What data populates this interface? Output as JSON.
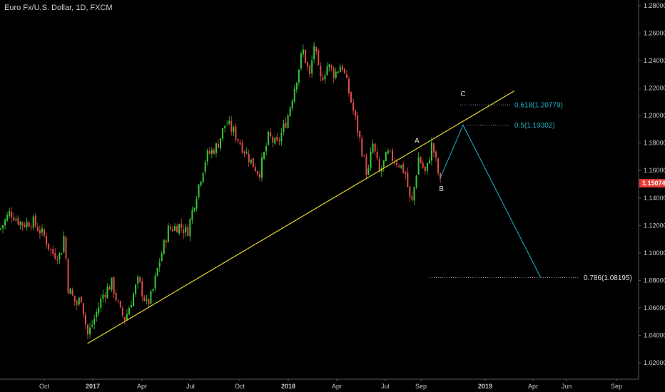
{
  "chart_data": {
    "type": "candlestick",
    "title": "Euro Fx/U.S. Dollar, 1D, FXCM",
    "ylim": [
      1.01,
      1.28
    ],
    "yticks": [
      "1.28000",
      "1.26000",
      "1.24000",
      "1.22000",
      "1.20000",
      "1.18000",
      "1.16000",
      "1.14000",
      "1.12000",
      "1.10000",
      "1.08000",
      "1.06000",
      "1.04000",
      "1.02000"
    ],
    "xticks": [
      "Oct",
      "2017",
      "Apr",
      "Jul",
      "Oct",
      "2018",
      "Apr",
      "Jul",
      "Sep",
      "2019",
      "Apr",
      "Jun",
      "Sep"
    ],
    "last_price": "1.15074",
    "price_path": [
      {
        "t": "2016-08",
        "v": 1.117
      },
      {
        "t": "2016-08-15",
        "v": 1.13
      },
      {
        "t": "2016-08-25",
        "v": 1.124
      },
      {
        "t": "2016-09",
        "v": 1.121
      },
      {
        "t": "2016-09-15",
        "v": 1.123
      },
      {
        "t": "2016-10",
        "v": 1.112
      },
      {
        "t": "2016-10-15",
        "v": 1.1
      },
      {
        "t": "2016-11-01",
        "v": 1.098
      },
      {
        "t": "2016-11-08",
        "v": 1.114
      },
      {
        "t": "2016-11-15",
        "v": 1.075
      },
      {
        "t": "2016-12-01",
        "v": 1.062
      },
      {
        "t": "2016-12-10",
        "v": 1.068
      },
      {
        "t": "2016-12-22",
        "v": 1.04
      },
      {
        "t": "2017-01-01",
        "v": 1.049
      },
      {
        "t": "2017-01-20",
        "v": 1.07
      },
      {
        "t": "2017-02-05",
        "v": 1.078
      },
      {
        "t": "2017-02-20",
        "v": 1.057
      },
      {
        "t": "2017-03-01",
        "v": 1.052
      },
      {
        "t": "2017-03-25",
        "v": 1.08
      },
      {
        "t": "2017-04-10",
        "v": 1.062
      },
      {
        "t": "2017-04-20",
        "v": 1.07
      },
      {
        "t": "2017-05-01",
        "v": 1.09
      },
      {
        "t": "2017-05-20",
        "v": 1.117
      },
      {
        "t": "2017-06-10",
        "v": 1.12
      },
      {
        "t": "2017-06-25",
        "v": 1.115
      },
      {
        "t": "2017-07-10",
        "v": 1.14
      },
      {
        "t": "2017-07-30",
        "v": 1.17
      },
      {
        "t": "2017-08-20",
        "v": 1.178
      },
      {
        "t": "2017-09-05",
        "v": 1.195
      },
      {
        "t": "2017-09-20",
        "v": 1.188
      },
      {
        "t": "2017-10-05",
        "v": 1.178
      },
      {
        "t": "2017-10-25",
        "v": 1.165
      },
      {
        "t": "2017-11-07",
        "v": 1.158
      },
      {
        "t": "2017-11-25",
        "v": 1.185
      },
      {
        "t": "2017-12-10",
        "v": 1.178
      },
      {
        "t": "2017-12-30",
        "v": 1.198
      },
      {
        "t": "2018-01-15",
        "v": 1.225
      },
      {
        "t": "2018-01-28",
        "v": 1.248
      },
      {
        "t": "2018-02-10",
        "v": 1.228
      },
      {
        "t": "2018-02-18",
        "v": 1.252
      },
      {
        "t": "2018-03-01",
        "v": 1.225
      },
      {
        "t": "2018-03-15",
        "v": 1.237
      },
      {
        "t": "2018-03-28",
        "v": 1.23
      },
      {
        "t": "2018-04-10",
        "v": 1.238
      },
      {
        "t": "2018-04-25",
        "v": 1.215
      },
      {
        "t": "2018-05-10",
        "v": 1.19
      },
      {
        "t": "2018-05-29",
        "v": 1.155
      },
      {
        "t": "2018-06-07",
        "v": 1.18
      },
      {
        "t": "2018-06-20",
        "v": 1.158
      },
      {
        "t": "2018-07-05",
        "v": 1.172
      },
      {
        "t": "2018-07-25",
        "v": 1.165
      },
      {
        "t": "2018-08-05",
        "v": 1.158
      },
      {
        "t": "2018-08-15",
        "v": 1.133
      },
      {
        "t": "2018-08-28",
        "v": 1.17
      },
      {
        "t": "2018-09-10",
        "v": 1.157
      },
      {
        "t": "2018-09-22",
        "v": 1.18
      },
      {
        "t": "2018-10-08",
        "v": 1.15
      }
    ],
    "trendline": {
      "start": {
        "t": "2016-12-22",
        "v": 1.034
      },
      "end": {
        "t": "2019-02-25",
        "v": 1.218
      }
    },
    "projection": [
      {
        "t": "2018-10-08",
        "v": 1.155
      },
      {
        "t": "2018-11-20",
        "v": 1.193
      },
      {
        "t": "2019-04-15",
        "v": 1.082
      }
    ],
    "waves": [
      {
        "label": "A",
        "t": "2018-08-25",
        "v": 1.178
      },
      {
        "label": "B",
        "t": "2018-10-10",
        "v": 1.143
      },
      {
        "label": "C",
        "t": "2018-11-20",
        "v": 1.212
      }
    ],
    "fib_levels": [
      {
        "label": "0.618(1.20779)",
        "value": 1.20779,
        "color": "#1fb5c8"
      },
      {
        "label": "0.5(1.19302)",
        "value": 1.19302,
        "color": "#1fb5c8"
      },
      {
        "label": "0.786(1.08195)",
        "value": 1.08195,
        "color": "#e0e0e0"
      }
    ],
    "colors": {
      "up": "#36c836",
      "down": "#e04a4a",
      "trend": "#e6d530",
      "projection": "#1fb5c8",
      "price_tag": "#e53935"
    }
  }
}
